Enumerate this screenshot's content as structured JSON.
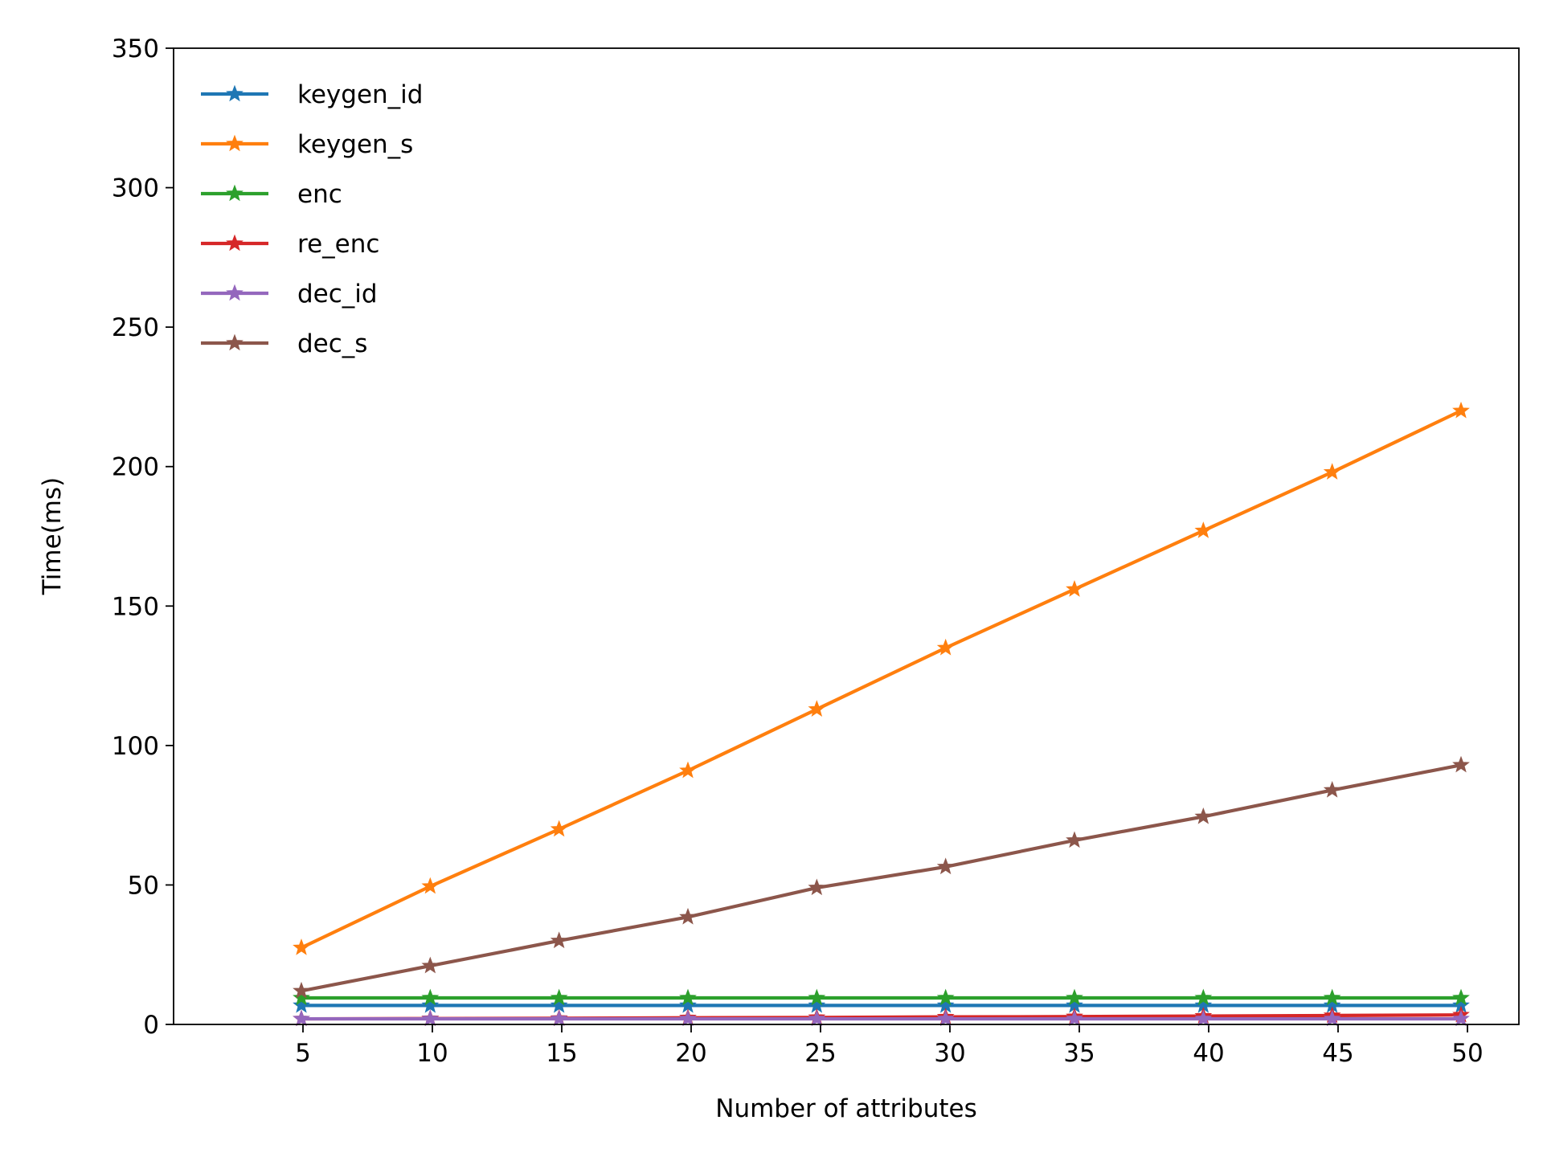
{
  "chart_data": {
    "type": "line",
    "title": "",
    "xlabel": "Number of attributes",
    "ylabel": "Time(ms)",
    "xlim": [
      0,
      53
    ],
    "ylim": [
      0,
      350
    ],
    "x_ticks": [
      5,
      10,
      15,
      20,
      25,
      30,
      35,
      40,
      45,
      50
    ],
    "y_ticks": [
      0,
      50,
      100,
      150,
      200,
      250,
      300,
      350
    ],
    "x": [
      5,
      10,
      15,
      20,
      25,
      30,
      35,
      40,
      45,
      50
    ],
    "marker": "star",
    "legend_position": "upper-left",
    "series": [
      {
        "name": "keygen_id",
        "color": "#1f77b4",
        "values": [
          6.8,
          6.8,
          6.8,
          6.8,
          6.8,
          6.8,
          6.8,
          6.8,
          6.8,
          6.8
        ]
      },
      {
        "name": "keygen_s",
        "color": "#ff7f0e",
        "values": [
          27.5,
          49.5,
          70,
          91,
          113,
          135,
          156,
          177,
          198,
          220
        ]
      },
      {
        "name": "enc",
        "color": "#2ca02c",
        "values": [
          9.5,
          9.5,
          9.5,
          9.5,
          9.5,
          9.5,
          9.5,
          9.5,
          9.5,
          9.5
        ]
      },
      {
        "name": "re_enc",
        "color": "#d62728",
        "values": [
          2.0,
          2.1,
          2.2,
          2.4,
          2.5,
          2.7,
          2.8,
          3.0,
          3.2,
          3.4
        ]
      },
      {
        "name": "dec_id",
        "color": "#9467bd",
        "values": [
          2.0,
          2.0,
          2.0,
          2.0,
          2.0,
          2.0,
          2.0,
          2.0,
          2.0,
          2.0
        ]
      },
      {
        "name": "dec_s",
        "color": "#8c564b",
        "values": [
          12,
          21,
          30,
          38.5,
          49,
          56.5,
          66,
          74.5,
          84,
          93
        ]
      }
    ]
  }
}
